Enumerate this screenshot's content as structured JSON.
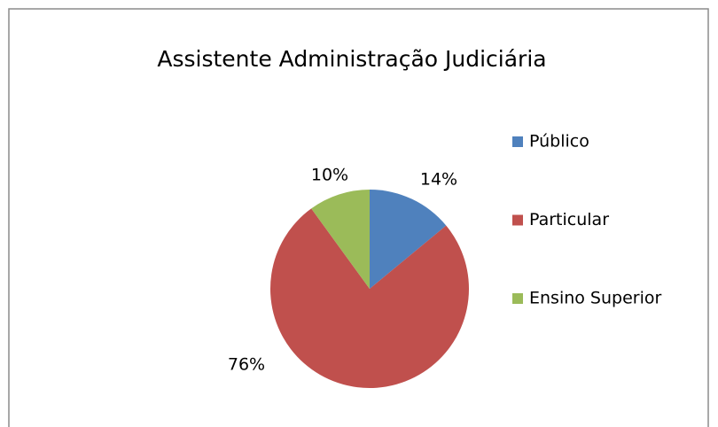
{
  "chart_data": {
    "type": "pie",
    "title": "Assistente Administração Judiciária",
    "categories": [
      "Público",
      "Particular",
      "Ensino Superior"
    ],
    "values": [
      14,
      76,
      10
    ],
    "value_labels": [
      "14%",
      "76%",
      "10%"
    ],
    "colors": [
      "#4f81bd",
      "#c0504d",
      "#9bbb59"
    ],
    "legend": "right"
  }
}
